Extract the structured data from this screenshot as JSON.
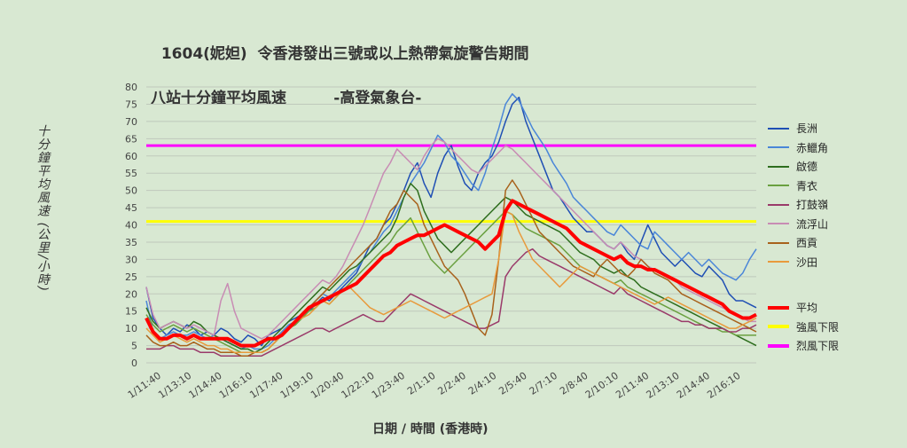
{
  "chart_data": {
    "type": "line",
    "title": "1604(妮妲)  令香港發出三號或以上熱帶氣旋警告期間",
    "subtitle": "八站十分鐘平均風速         -高登氣象台-",
    "ylabel": "十分鐘平均風速 (公里/小時)",
    "xlabel": "日期 / 時間 (香港時)",
    "ylim": [
      0,
      80
    ],
    "yticks": [
      0,
      5,
      10,
      15,
      20,
      25,
      30,
      35,
      40,
      45,
      50,
      55,
      60,
      65,
      70,
      75,
      80
    ],
    "x_tick_labels": [
      "1/11:40",
      "1/13:10",
      "1/14:40",
      "1/16:10",
      "1/17:40",
      "1/19:10",
      "1/20:40",
      "1/22:10",
      "1/23:40",
      "2/1:10",
      "2/2:40",
      "2/4:10",
      "2/5:40",
      "2/7:10",
      "2/8:40",
      "2/10:10",
      "2/11:40",
      "2/13:10",
      "2/14:40",
      "2/16:10"
    ],
    "grid": true,
    "legend_position": "right",
    "series": [
      {
        "name": "長洲",
        "color": "#1f4fb4",
        "width": 1.5,
        "values": [
          22,
          13,
          10,
          8,
          10,
          9,
          11,
          10,
          8,
          9,
          8,
          10,
          9,
          7,
          6,
          8,
          7,
          5,
          8,
          9,
          10,
          12,
          13,
          14,
          15,
          17,
          19,
          18,
          20,
          22,
          24,
          26,
          30,
          34,
          36,
          40,
          42,
          46,
          50,
          55,
          58,
          52,
          48,
          55,
          60,
          63,
          57,
          52,
          50,
          55,
          58,
          60,
          64,
          70,
          75,
          77,
          70,
          65,
          60,
          55,
          50,
          48,
          45,
          42,
          40,
          38,
          38,
          36,
          34,
          33,
          35,
          32,
          30,
          35,
          40,
          36,
          32,
          30,
          28,
          30,
          28,
          26,
          25,
          28,
          26,
          24,
          20,
          18,
          18,
          17,
          16
        ]
      },
      {
        "name": "赤鱲角",
        "color": "#4a86d8",
        "width": 1.5,
        "values": [
          18,
          9,
          7,
          8,
          9,
          8,
          8,
          9,
          8,
          7,
          8,
          7,
          6,
          5,
          4,
          5,
          4,
          4,
          5,
          7,
          9,
          11,
          12,
          14,
          16,
          18,
          20,
          19,
          21,
          23,
          25,
          27,
          30,
          32,
          35,
          38,
          40,
          44,
          48,
          52,
          55,
          58,
          62,
          66,
          64,
          60,
          58,
          55,
          52,
          50,
          55,
          62,
          68,
          75,
          78,
          76,
          72,
          68,
          65,
          62,
          58,
          55,
          52,
          48,
          46,
          44,
          42,
          40,
          38,
          37,
          40,
          38,
          36,
          34,
          33,
          38,
          36,
          34,
          32,
          30,
          32,
          30,
          28,
          30,
          28,
          26,
          25,
          24,
          26,
          30,
          33
        ]
      },
      {
        "name": "啟德",
        "color": "#2e6e1e",
        "width": 1.5,
        "values": [
          16,
          12,
          10,
          11,
          12,
          11,
          10,
          12,
          11,
          9,
          8,
          7,
          6,
          5,
          4,
          4,
          3,
          4,
          6,
          8,
          10,
          12,
          14,
          16,
          18,
          20,
          22,
          21,
          23,
          25,
          27,
          28,
          30,
          32,
          34,
          36,
          38,
          42,
          48,
          52,
          50,
          44,
          40,
          36,
          34,
          32,
          34,
          36,
          38,
          40,
          42,
          44,
          46,
          48,
          47,
          45,
          43,
          42,
          41,
          40,
          39,
          38,
          36,
          34,
          32,
          31,
          30,
          28,
          27,
          26,
          27,
          25,
          24,
          22,
          21,
          20,
          19,
          18,
          17,
          16,
          15,
          14,
          13,
          12,
          11,
          10,
          9,
          8,
          7,
          6,
          5
        ]
      },
      {
        "name": "青衣",
        "color": "#6aa040",
        "width": 1.5,
        "values": [
          14,
          11,
          9,
          10,
          11,
          10,
          9,
          10,
          9,
          8,
          7,
          6,
          5,
          4,
          3,
          3,
          3,
          3,
          4,
          6,
          8,
          10,
          11,
          13,
          15,
          16,
          18,
          17,
          19,
          21,
          23,
          25,
          27,
          29,
          31,
          33,
          35,
          38,
          40,
          42,
          38,
          34,
          30,
          28,
          26,
          28,
          30,
          32,
          34,
          36,
          38,
          40,
          42,
          44,
          43,
          41,
          39,
          38,
          37,
          36,
          35,
          34,
          32,
          30,
          28,
          27,
          26,
          25,
          24,
          23,
          24,
          22,
          21,
          20,
          19,
          18,
          17,
          16,
          15,
          14,
          13,
          12,
          11,
          10,
          10,
          9,
          9,
          8,
          8,
          8,
          8
        ]
      },
      {
        "name": "打鼓嶺",
        "color": "#9a3a6a",
        "width": 1.5,
        "values": [
          4,
          4,
          4,
          5,
          5,
          4,
          4,
          4,
          3,
          3,
          3,
          2,
          2,
          2,
          2,
          2,
          2,
          2,
          3,
          4,
          5,
          6,
          7,
          8,
          9,
          10,
          10,
          9,
          10,
          11,
          12,
          13,
          14,
          13,
          12,
          12,
          14,
          16,
          18,
          20,
          19,
          18,
          17,
          16,
          15,
          14,
          13,
          12,
          11,
          10,
          10,
          11,
          12,
          25,
          28,
          30,
          32,
          33,
          31,
          30,
          29,
          28,
          27,
          26,
          25,
          24,
          23,
          22,
          21,
          20,
          22,
          20,
          19,
          18,
          17,
          16,
          15,
          14,
          13,
          12,
          12,
          11,
          11,
          10,
          10,
          10,
          9,
          9,
          10,
          10,
          11
        ]
      },
      {
        "name": "流浮山",
        "color": "#c88cb4",
        "width": 1.5,
        "values": [
          22,
          14,
          10,
          11,
          12,
          11,
          10,
          11,
          10,
          9,
          8,
          18,
          23,
          15,
          10,
          9,
          8,
          7,
          8,
          10,
          12,
          14,
          16,
          18,
          20,
          22,
          24,
          23,
          25,
          28,
          32,
          36,
          40,
          45,
          50,
          55,
          58,
          62,
          60,
          58,
          56,
          60,
          63,
          65,
          64,
          62,
          60,
          58,
          56,
          55,
          57,
          59,
          61,
          63,
          62,
          60,
          58,
          56,
          54,
          52,
          50,
          48,
          46,
          44,
          42,
          40,
          38,
          36,
          34,
          33,
          35,
          33,
          31,
          30,
          28,
          27,
          26,
          25,
          24,
          22,
          21,
          20,
          19,
          18,
          17,
          16,
          15,
          14,
          13,
          12,
          12
        ]
      },
      {
        "name": "西貢",
        "color": "#a8621c",
        "width": 1.5,
        "values": [
          8,
          6,
          5,
          5,
          6,
          5,
          5,
          6,
          5,
          4,
          4,
          3,
          3,
          3,
          2,
          2,
          3,
          3,
          4,
          6,
          8,
          10,
          12,
          14,
          16,
          18,
          20,
          22,
          24,
          26,
          28,
          30,
          32,
          34,
          36,
          40,
          44,
          46,
          50,
          48,
          46,
          40,
          36,
          32,
          28,
          26,
          24,
          20,
          15,
          10,
          8,
          14,
          30,
          50,
          53,
          50,
          46,
          42,
          38,
          36,
          34,
          32,
          30,
          28,
          27,
          26,
          25,
          28,
          30,
          28,
          26,
          25,
          27,
          30,
          28,
          26,
          25,
          24,
          22,
          20,
          19,
          18,
          17,
          16,
          15,
          14,
          13,
          12,
          11,
          10,
          9
        ]
      },
      {
        "name": "沙田",
        "color": "#e89a3c",
        "width": 1.5,
        "values": [
          10,
          8,
          6,
          7,
          8,
          7,
          6,
          7,
          6,
          5,
          5,
          4,
          4,
          3,
          3,
          3,
          3,
          3,
          4,
          6,
          8,
          10,
          12,
          13,
          14,
          16,
          18,
          17,
          19,
          21,
          22,
          20,
          18,
          16,
          15,
          14,
          15,
          16,
          17,
          18,
          17,
          16,
          15,
          14,
          13,
          14,
          15,
          16,
          17,
          18,
          19,
          20,
          30,
          44,
          43,
          38,
          34,
          30,
          28,
          26,
          24,
          22,
          24,
          26,
          28,
          27,
          26,
          25,
          24,
          23,
          22,
          21,
          20,
          19,
          18,
          17,
          18,
          19,
          18,
          17,
          16,
          15,
          14,
          13,
          12,
          11,
          10,
          10,
          11,
          12,
          13
        ]
      },
      {
        "name": "平均",
        "color": "#ff0000",
        "width": 4,
        "values": [
          13,
          9,
          7,
          7,
          8,
          8,
          7,
          8,
          7,
          7,
          7,
          7,
          7,
          6,
          5,
          5,
          5,
          6,
          7,
          7,
          8,
          10,
          12,
          14,
          16,
          17,
          18,
          19,
          20,
          21,
          22,
          23,
          25,
          27,
          29,
          31,
          32,
          34,
          35,
          36,
          37,
          37,
          38,
          39,
          40,
          39,
          38,
          37,
          36,
          35,
          33,
          35,
          37,
          44,
          47,
          46,
          45,
          44,
          43,
          42,
          41,
          40,
          39,
          37,
          35,
          34,
          33,
          32,
          31,
          30,
          31,
          29,
          28,
          28,
          27,
          27,
          26,
          25,
          24,
          23,
          22,
          21,
          20,
          19,
          18,
          17,
          15,
          14,
          13,
          13,
          14
        ]
      }
    ],
    "thresholds": [
      {
        "name": "強風下限",
        "value": 41,
        "color": "#ffff00"
      },
      {
        "name": "烈風下限",
        "value": 63,
        "color": "#ff00ff"
      }
    ]
  }
}
